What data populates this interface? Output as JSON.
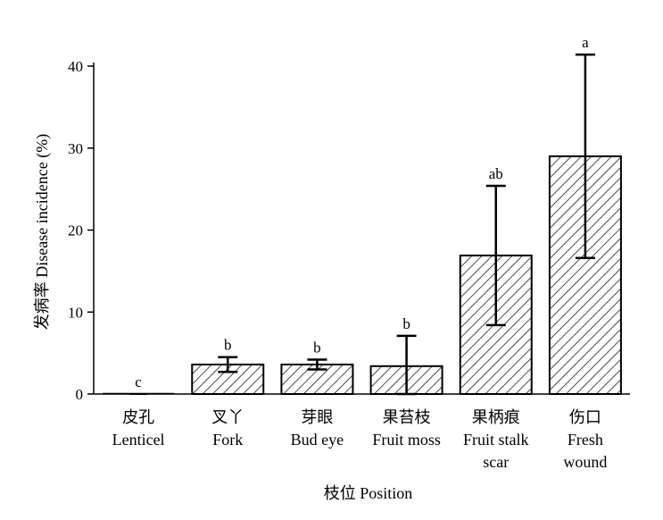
{
  "chart_data": {
    "type": "bar",
    "categories": [
      {
        "zh": "皮孔",
        "en": [
          "Lenticel"
        ]
      },
      {
        "zh": "叉丫",
        "en": [
          "Fork"
        ]
      },
      {
        "zh": "芽眼",
        "en": [
          "Bud eye"
        ]
      },
      {
        "zh": "果苔枝",
        "en": [
          "Fruit moss"
        ]
      },
      {
        "zh": "果柄痕",
        "en": [
          "Fruit stalk",
          "scar"
        ]
      },
      {
        "zh": "伤口",
        "en": [
          "Fresh",
          "wound"
        ]
      }
    ],
    "values": [
      0,
      3.6,
      3.6,
      3.4,
      16.9,
      29.0
    ],
    "error": [
      0,
      0.9,
      0.6,
      3.7,
      8.5,
      12.4
    ],
    "significance": [
      "c",
      "b",
      "b",
      "b",
      "ab",
      "a"
    ],
    "ylabel": "发病率 Disease incidence (%)",
    "xlabel": "枝位 Position",
    "ylim": [
      0,
      40
    ],
    "yticks": [
      0,
      10,
      20,
      30,
      40
    ],
    "bar_fill": "diagonal-hatch",
    "grid": false,
    "colors": {
      "bar_stroke": "#000000",
      "hatch": "#000000",
      "background": "#ffffff"
    }
  }
}
